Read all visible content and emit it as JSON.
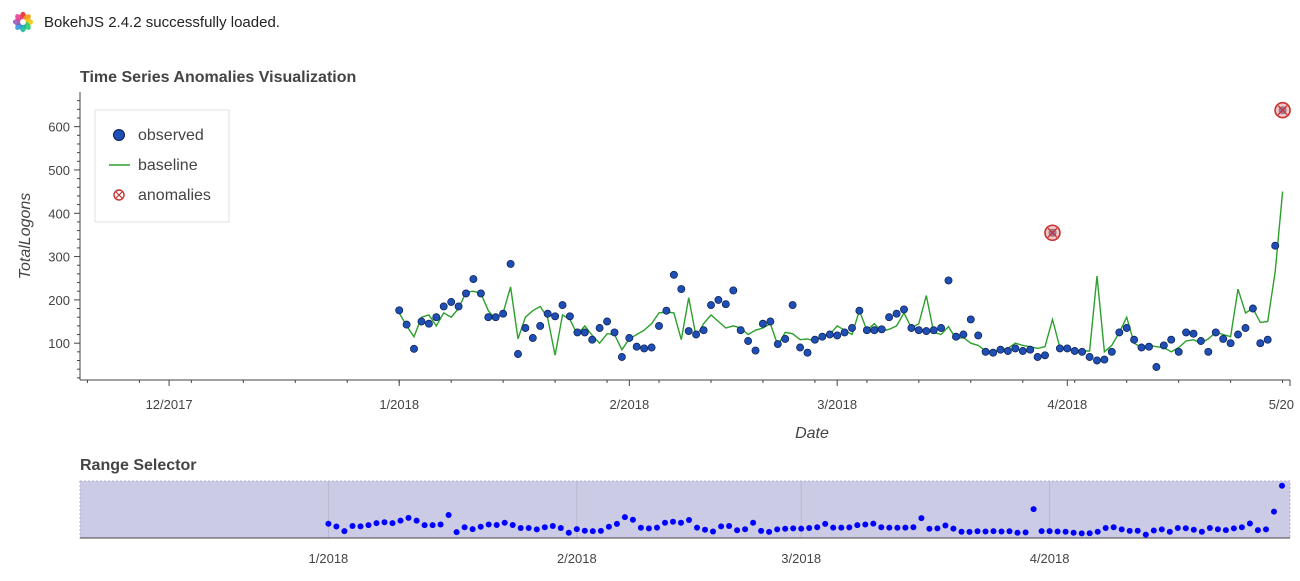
{
  "banner": {
    "text": "BokehJS 2.4.2 successfully loaded.",
    "icon": "bokeh-logo-icon"
  },
  "chart_data": [
    {
      "type": "line",
      "title": "Time Series Anomalies Visualization",
      "xlabel": "Date",
      "ylabel": "TotalLogons",
      "x_ticks": [
        "12/2017",
        "1/2018",
        "2/2018",
        "3/2018",
        "4/2018",
        "5/20"
      ],
      "y_ticks": [
        100,
        200,
        300,
        400,
        500,
        600
      ],
      "xlim": [
        "2017-11-19",
        "2018-05-01"
      ],
      "ylim": [
        15,
        680
      ],
      "legend": {
        "placement": "top-left",
        "entries": [
          "observed",
          "baseline",
          "anomalies"
        ]
      },
      "colors": {
        "observed": "#1f4fb4",
        "baseline": "#2ca02c",
        "anomalies": "#c83232"
      },
      "series": [
        {
          "name": "observed",
          "x": [
            "2018-01-01",
            "2018-01-02",
            "2018-01-03",
            "2018-01-04",
            "2018-01-05",
            "2018-01-06",
            "2018-01-07",
            "2018-01-08",
            "2018-01-09",
            "2018-01-10",
            "2018-01-11",
            "2018-01-12",
            "2018-01-13",
            "2018-01-14",
            "2018-01-15",
            "2018-01-16",
            "2018-01-17",
            "2018-01-18",
            "2018-01-19",
            "2018-01-20",
            "2018-01-21",
            "2018-01-22",
            "2018-01-23",
            "2018-01-24",
            "2018-01-25",
            "2018-01-26",
            "2018-01-27",
            "2018-01-28",
            "2018-01-29",
            "2018-01-30",
            "2018-01-31",
            "2018-02-01",
            "2018-02-02",
            "2018-02-03",
            "2018-02-04",
            "2018-02-05",
            "2018-02-06",
            "2018-02-07",
            "2018-02-08",
            "2018-02-09",
            "2018-02-10",
            "2018-02-11",
            "2018-02-12",
            "2018-02-13",
            "2018-02-14",
            "2018-02-15",
            "2018-02-16",
            "2018-02-17",
            "2018-02-18",
            "2018-02-19",
            "2018-02-20",
            "2018-02-21",
            "2018-02-22",
            "2018-02-23",
            "2018-02-24",
            "2018-02-25",
            "2018-02-26",
            "2018-02-27",
            "2018-02-28",
            "2018-03-01",
            "2018-03-02",
            "2018-03-03",
            "2018-03-04",
            "2018-03-05",
            "2018-03-06",
            "2018-03-07",
            "2018-03-08",
            "2018-03-09",
            "2018-03-10",
            "2018-03-11",
            "2018-03-12",
            "2018-03-13",
            "2018-03-14",
            "2018-03-15",
            "2018-03-16",
            "2018-03-17",
            "2018-03-18",
            "2018-03-19",
            "2018-03-20",
            "2018-03-21",
            "2018-03-22",
            "2018-03-23",
            "2018-03-24",
            "2018-03-25",
            "2018-03-26",
            "2018-03-27",
            "2018-03-28",
            "2018-03-29",
            "2018-03-30",
            "2018-03-31",
            "2018-04-01",
            "2018-04-02",
            "2018-04-03",
            "2018-04-04",
            "2018-04-05",
            "2018-04-06",
            "2018-04-07",
            "2018-04-08",
            "2018-04-09",
            "2018-04-10",
            "2018-04-11",
            "2018-04-12",
            "2018-04-13",
            "2018-04-14",
            "2018-04-15",
            "2018-04-16",
            "2018-04-17",
            "2018-04-18",
            "2018-04-19",
            "2018-04-20",
            "2018-04-21",
            "2018-04-22",
            "2018-04-23",
            "2018-04-24",
            "2018-04-25",
            "2018-04-26",
            "2018-04-27",
            "2018-04-28",
            "2018-04-29",
            "2018-04-30"
          ],
          "values": [
            176,
            143,
            87,
            150,
            145,
            160,
            185,
            195,
            185,
            215,
            248,
            215,
            160,
            160,
            168,
            283,
            75,
            135,
            112,
            140,
            168,
            162,
            188,
            162,
            125,
            125,
            108,
            135,
            150,
            125,
            68,
            112,
            92,
            88,
            90,
            140,
            175,
            258,
            225,
            128,
            120,
            130,
            188,
            200,
            190,
            222,
            130,
            105,
            83,
            145,
            150,
            98,
            110,
            188,
            90,
            78,
            108,
            115,
            120,
            118,
            125,
            135,
            175,
            130,
            130,
            132,
            160,
            168,
            178,
            135,
            130,
            128,
            130,
            135,
            245,
            115,
            120,
            155,
            118,
            80,
            78,
            85,
            82,
            88,
            82,
            85,
            68,
            72,
            355,
            88,
            88,
            82,
            80,
            68,
            60,
            62,
            80,
            125,
            135,
            108,
            90,
            92,
            45,
            95,
            108,
            80,
            125,
            122,
            105,
            80,
            125,
            110,
            100,
            120,
            135,
            180,
            100,
            108,
            325,
            638
          ]
        },
        {
          "name": "baseline",
          "x": [
            "2018-01-01",
            "2018-01-02",
            "2018-01-03",
            "2018-01-04",
            "2018-01-05",
            "2018-01-06",
            "2018-01-07",
            "2018-01-08",
            "2018-01-09",
            "2018-01-10",
            "2018-01-11",
            "2018-01-12",
            "2018-01-13",
            "2018-01-14",
            "2018-01-15",
            "2018-01-16",
            "2018-01-17",
            "2018-01-18",
            "2018-01-19",
            "2018-01-20",
            "2018-01-21",
            "2018-01-22",
            "2018-01-23",
            "2018-01-24",
            "2018-01-25",
            "2018-01-26",
            "2018-01-27",
            "2018-01-28",
            "2018-01-29",
            "2018-01-30",
            "2018-01-31",
            "2018-02-01",
            "2018-02-02",
            "2018-02-03",
            "2018-02-04",
            "2018-02-05",
            "2018-02-06",
            "2018-02-07",
            "2018-02-08",
            "2018-02-09",
            "2018-02-10",
            "2018-02-11",
            "2018-02-12",
            "2018-02-13",
            "2018-02-14",
            "2018-02-15",
            "2018-02-16",
            "2018-02-17",
            "2018-02-18",
            "2018-02-19",
            "2018-02-20",
            "2018-02-21",
            "2018-02-22",
            "2018-02-23",
            "2018-02-24",
            "2018-02-25",
            "2018-02-26",
            "2018-02-27",
            "2018-02-28",
            "2018-03-01",
            "2018-03-02",
            "2018-03-03",
            "2018-03-04",
            "2018-03-05",
            "2018-03-06",
            "2018-03-07",
            "2018-03-08",
            "2018-03-09",
            "2018-03-10",
            "2018-03-11",
            "2018-03-12",
            "2018-03-13",
            "2018-03-14",
            "2018-03-15",
            "2018-03-16",
            "2018-03-17",
            "2018-03-18",
            "2018-03-19",
            "2018-03-20",
            "2018-03-21",
            "2018-03-22",
            "2018-03-23",
            "2018-03-24",
            "2018-03-25",
            "2018-03-26",
            "2018-03-27",
            "2018-03-28",
            "2018-03-29",
            "2018-03-30",
            "2018-03-31",
            "2018-04-01",
            "2018-04-02",
            "2018-04-03",
            "2018-04-04",
            "2018-04-05",
            "2018-04-06",
            "2018-04-07",
            "2018-04-08",
            "2018-04-09",
            "2018-04-10",
            "2018-04-11",
            "2018-04-12",
            "2018-04-13",
            "2018-04-14",
            "2018-04-15",
            "2018-04-16",
            "2018-04-17",
            "2018-04-18",
            "2018-04-19",
            "2018-04-20",
            "2018-04-21",
            "2018-04-22",
            "2018-04-23",
            "2018-04-24",
            "2018-04-25",
            "2018-04-26",
            "2018-04-27",
            "2018-04-28",
            "2018-04-29",
            "2018-04-30"
          ],
          "values": [
            170,
            140,
            115,
            160,
            165,
            140,
            170,
            160,
            180,
            218,
            220,
            215,
            175,
            155,
            170,
            230,
            110,
            160,
            175,
            185,
            158,
            72,
            165,
            155,
            120,
            140,
            118,
            100,
            122,
            120,
            85,
            110,
            120,
            130,
            145,
            170,
            172,
            170,
            108,
            205,
            115,
            145,
            165,
            150,
            135,
            140,
            135,
            120,
            130,
            135,
            145,
            95,
            125,
            122,
            108,
            110,
            105,
            118,
            120,
            140,
            130,
            120,
            175,
            130,
            145,
            128,
            132,
            140,
            170,
            135,
            145,
            210,
            125,
            120,
            138,
            110,
            113,
            100,
            95,
            82,
            80,
            85,
            88,
            100,
            95,
            92,
            88,
            92,
            155,
            90,
            90,
            78,
            82,
            82,
            255,
            80,
            95,
            125,
            160,
            100,
            90,
            95,
            92,
            90,
            80,
            90,
            105,
            108,
            100,
            110,
            125,
            120,
            115,
            225,
            170,
            180,
            148,
            150,
            265,
            450
          ]
        },
        {
          "name": "anomalies",
          "x": [
            "2018-03-30",
            "2018-04-30"
          ],
          "values": [
            355,
            638
          ]
        }
      ]
    },
    {
      "type": "scatter",
      "title": "Range Selector",
      "x_ticks": [
        "1/2018",
        "2/2018",
        "3/2018",
        "4/2018"
      ],
      "xlim": [
        "2017-12-01",
        "2018-05-01"
      ],
      "colors": {
        "points": "#0000ff",
        "selection": "#cbcbe6"
      }
    }
  ]
}
